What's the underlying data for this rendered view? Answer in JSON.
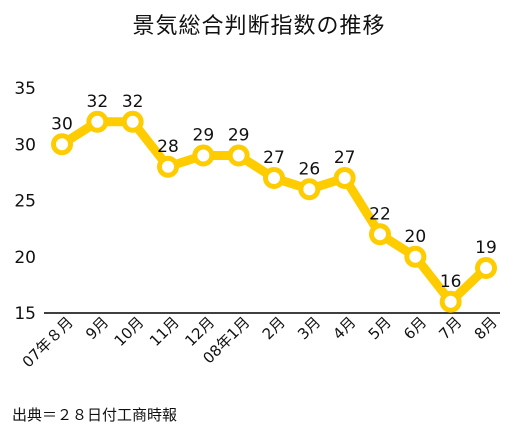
{
  "chart_data": {
    "type": "line",
    "title": "景気総合判断指数の推移",
    "source": "出典＝２８日付工商時報",
    "categories": [
      "07年８月",
      "9月",
      "10月",
      "11月",
      "12月",
      "08年1月",
      "2月",
      "3月",
      "4月",
      "5月",
      "6月",
      "7月",
      "8月"
    ],
    "series": [
      {
        "values": [
          30,
          32,
          32,
          28,
          29,
          29,
          27,
          26,
          27,
          22,
          20,
          16,
          19
        ]
      }
    ],
    "yticks": [
      15,
      20,
      25,
      30,
      35
    ],
    "ylim": [
      15,
      35
    ],
    "grid": false,
    "color": "#ffcc00"
  }
}
